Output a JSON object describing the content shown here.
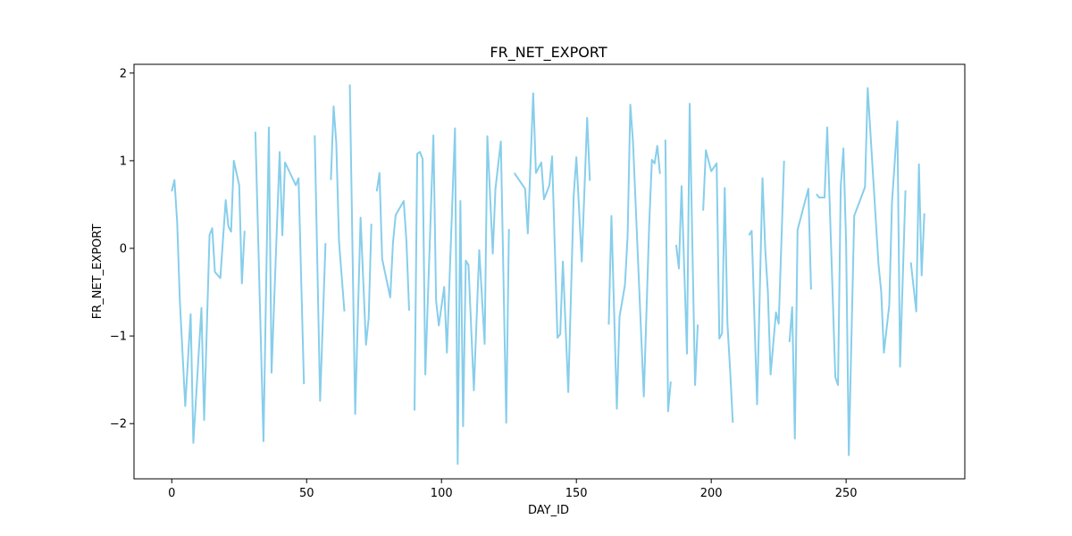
{
  "chart_data": {
    "type": "line",
    "title": "FR_NET_EXPORT",
    "xlabel": "DAY_ID",
    "ylabel": "FR_NET_EXPORT",
    "xlim": [
      -14,
      294
    ],
    "ylim": [
      -2.63,
      2.1
    ],
    "x_ticks": [
      0,
      50,
      100,
      150,
      200,
      250
    ],
    "y_ticks": [
      -2,
      -1,
      0,
      1,
      2
    ],
    "x_tick_labels": [
      "0",
      "50",
      "100",
      "150",
      "200",
      "250"
    ],
    "y_tick_labels": [
      "−2",
      "−1",
      "0",
      "1",
      "2"
    ],
    "grid": false,
    "legend": "none",
    "line_color": "#87ceeb",
    "series": [
      {
        "segments": [
          [
            [
              0,
              0.65
            ],
            [
              1,
              0.78
            ],
            [
              2,
              0.3
            ],
            [
              3,
              -0.6
            ],
            [
              5,
              -1.8
            ],
            [
              7,
              -0.75
            ],
            [
              8,
              -2.22
            ],
            [
              11,
              -0.68
            ],
            [
              12,
              -1.96
            ],
            [
              14,
              0.15
            ],
            [
              15,
              0.23
            ],
            [
              16,
              -0.27
            ],
            [
              18,
              -0.34
            ],
            [
              20,
              0.55
            ],
            [
              21,
              0.25
            ],
            [
              22,
              0.19
            ],
            [
              23,
              1.0
            ],
            [
              25,
              0.72
            ],
            [
              26,
              -0.4
            ],
            [
              27,
              0.2
            ]
          ],
          [
            [
              31,
              1.33
            ],
            [
              34,
              -2.2
            ],
            [
              36,
              1.38
            ],
            [
              37,
              -1.42
            ],
            [
              40,
              1.1
            ],
            [
              41,
              0.15
            ],
            [
              42,
              0.98
            ],
            [
              46,
              0.72
            ],
            [
              47,
              0.8
            ],
            [
              49,
              -1.55
            ]
          ],
          [
            [
              53,
              1.29
            ],
            [
              55,
              -1.74
            ],
            [
              57,
              0.06
            ]
          ],
          [
            [
              59,
              0.78
            ],
            [
              60,
              1.62
            ],
            [
              61,
              1.2
            ],
            [
              62,
              0.08
            ],
            [
              64,
              -0.72
            ]
          ],
          [
            [
              66,
              1.87
            ],
            [
              68,
              -1.89
            ],
            [
              70,
              0.35
            ],
            [
              72,
              -1.1
            ],
            [
              73,
              -0.8
            ],
            [
              74,
              0.28
            ]
          ],
          [
            [
              76,
              0.65
            ],
            [
              77,
              0.86
            ],
            [
              78,
              -0.12
            ],
            [
              81,
              -0.56
            ],
            [
              82,
              0.06
            ],
            [
              83,
              0.38
            ],
            [
              86,
              0.54
            ],
            [
              87,
              0.08
            ],
            [
              88,
              -0.71
            ]
          ],
          [
            [
              90,
              -1.85
            ],
            [
              91,
              1.08
            ],
            [
              92,
              1.1
            ],
            [
              93,
              1.02
            ],
            [
              94,
              -1.44
            ],
            [
              97,
              1.29
            ],
            [
              98,
              -0.6
            ],
            [
              99,
              -0.88
            ],
            [
              101,
              -0.44
            ],
            [
              102,
              -1.19
            ],
            [
              105,
              1.37
            ],
            [
              106,
              -2.46
            ],
            [
              107,
              0.54
            ],
            [
              108,
              -2.03
            ],
            [
              109,
              -0.14
            ],
            [
              110,
              -0.19
            ],
            [
              112,
              -1.62
            ],
            [
              114,
              -0.02
            ],
            [
              116,
              -1.09
            ],
            [
              117,
              1.28
            ],
            [
              119,
              -0.06
            ],
            [
              120,
              0.68
            ],
            [
              122,
              1.22
            ],
            [
              124,
              -1.99
            ],
            [
              125,
              0.22
            ]
          ],
          [
            [
              127,
              0.86
            ],
            [
              131,
              0.68
            ],
            [
              132,
              0.17
            ],
            [
              134,
              1.77
            ],
            [
              135,
              0.86
            ],
            [
              137,
              0.98
            ],
            [
              138,
              0.56
            ],
            [
              140,
              0.72
            ],
            [
              141,
              1.05
            ],
            [
              143,
              -1.02
            ],
            [
              144,
              -0.98
            ],
            [
              145,
              -0.15
            ],
            [
              147,
              -1.64
            ],
            [
              149,
              0.6
            ],
            [
              150,
              1.04
            ],
            [
              152,
              -0.15
            ],
            [
              153,
              0.67
            ],
            [
              154,
              1.49
            ],
            [
              155,
              0.77
            ]
          ],
          [
            [
              162,
              -0.87
            ],
            [
              163,
              0.37
            ],
            [
              165,
              -1.83
            ],
            [
              166,
              -0.78
            ],
            [
              168,
              -0.42
            ],
            [
              169,
              0.14
            ],
            [
              170,
              1.64
            ],
            [
              171,
              1.21
            ],
            [
              175,
              -1.69
            ],
            [
              177,
              0.27
            ],
            [
              178,
              1.01
            ],
            [
              179,
              0.97
            ],
            [
              180,
              1.17
            ],
            [
              181,
              0.85
            ]
          ],
          [
            [
              183,
              1.24
            ],
            [
              184,
              -1.86
            ],
            [
              185,
              -1.52
            ]
          ],
          [
            [
              187,
              0.04
            ],
            [
              188,
              -0.23
            ],
            [
              189,
              0.71
            ],
            [
              191,
              -1.2
            ],
            [
              192,
              1.65
            ],
            [
              194,
              -1.56
            ],
            [
              195,
              -0.87
            ]
          ],
          [
            [
              197,
              0.43
            ],
            [
              198,
              1.12
            ],
            [
              200,
              0.88
            ],
            [
              202,
              0.97
            ],
            [
              203,
              -1.03
            ],
            [
              204,
              -0.97
            ],
            [
              205,
              0.69
            ],
            [
              206,
              -0.86
            ],
            [
              207,
              -1.39
            ],
            [
              208,
              -1.99
            ]
          ],
          [
            [
              214,
              0.15
            ],
            [
              215,
              0.2
            ],
            [
              217,
              -1.78
            ],
            [
              219,
              0.8
            ],
            [
              220,
              0.0
            ],
            [
              221,
              -0.5
            ],
            [
              222,
              -1.44
            ],
            [
              224,
              -0.73
            ],
            [
              225,
              -0.86
            ],
            [
              227,
              1.0
            ]
          ],
          [
            [
              229,
              -1.07
            ],
            [
              230,
              -0.67
            ],
            [
              231,
              -2.17
            ],
            [
              232,
              0.21
            ],
            [
              236,
              0.68
            ],
            [
              237,
              -0.47
            ]
          ],
          [
            [
              239,
              0.62
            ],
            [
              240,
              0.58
            ],
            [
              242,
              0.58
            ],
            [
              243,
              1.38
            ],
            [
              246,
              -1.47
            ],
            [
              247,
              -1.56
            ],
            [
              248,
              0.7
            ],
            [
              249,
              1.14
            ],
            [
              250,
              0.06
            ],
            [
              251,
              -2.36
            ],
            [
              253,
              0.37
            ],
            [
              257,
              0.7
            ],
            [
              258,
              1.83
            ],
            [
              262,
              -0.18
            ],
            [
              263,
              -0.49
            ],
            [
              264,
              -1.19
            ],
            [
              266,
              -0.65
            ],
            [
              267,
              0.52
            ],
            [
              268,
              0.97
            ],
            [
              269,
              1.45
            ],
            [
              270,
              -1.35
            ],
            [
              272,
              0.66
            ]
          ],
          [
            [
              274,
              -0.16
            ],
            [
              276,
              -0.72
            ],
            [
              277,
              0.96
            ],
            [
              278,
              -0.31
            ],
            [
              279,
              0.4
            ]
          ]
        ]
      }
    ]
  }
}
